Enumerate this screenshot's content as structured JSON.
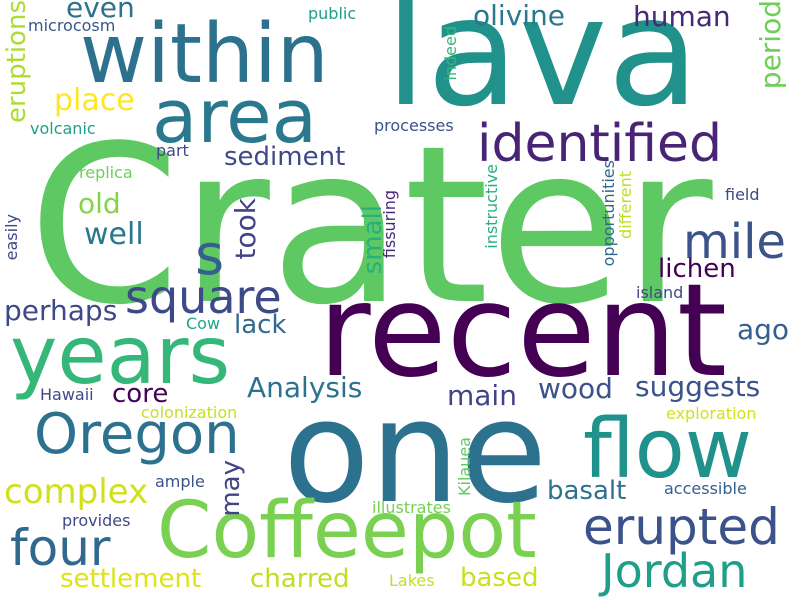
{
  "words": {
    "crater": {
      "text": "Crater",
      "color": "#5ec962"
    },
    "lava": {
      "text": "lava",
      "color": "#21918c"
    },
    "recent": {
      "text": "recent",
      "color": "#440154"
    },
    "one": {
      "text": "one",
      "color": "#2c728e"
    },
    "coffeepot": {
      "text": "Coffeepot",
      "color": "#7ad151"
    },
    "within": {
      "text": "within",
      "color": "#2c728e"
    },
    "years": {
      "text": "years",
      "color": "#35b779"
    },
    "flow": {
      "text": "flow",
      "color": "#21918c"
    },
    "area": {
      "text": "area",
      "color": "#2a788e"
    },
    "oregon": {
      "text": "Oregon",
      "color": "#2c728e"
    },
    "identified": {
      "text": "identified",
      "color": "#482475"
    },
    "erupted": {
      "text": "erupted",
      "color": "#3b528b"
    },
    "jordan": {
      "text": "Jordan",
      "color": "#1f9e89"
    },
    "four": {
      "text": "four",
      "color": "#31688e"
    },
    "mile": {
      "text": "mile",
      "color": "#3b528b"
    },
    "square": {
      "text": "square",
      "color": "#3e4989"
    },
    "s": {
      "text": "s",
      "color": "#355f8d"
    },
    "complex": {
      "text": "complex",
      "color": "#d0e11c"
    },
    "settlement": {
      "text": "settlement",
      "color": "#dde318"
    },
    "charred": {
      "text": "charred",
      "color": "#bddf26"
    },
    "based": {
      "text": "based",
      "color": "#c8e020"
    },
    "olivine": {
      "text": "olivine",
      "color": "#2a788e"
    },
    "human": {
      "text": "human",
      "color": "#482878"
    },
    "sediment": {
      "text": "sediment",
      "color": "#3e4989"
    },
    "place": {
      "text": "place",
      "color": "#fde725"
    },
    "even": {
      "text": "even",
      "color": "#2c728e"
    },
    "well": {
      "text": "well",
      "color": "#2a788e"
    },
    "old": {
      "text": "old",
      "color": "#86d549"
    },
    "perhaps": {
      "text": "perhaps",
      "color": "#3e4989"
    },
    "lack": {
      "text": "lack",
      "color": "#31688e"
    },
    "took": {
      "text": "took",
      "color": "#414487"
    },
    "small": {
      "text": "small",
      "color": "#29af7f"
    },
    "lichen": {
      "text": "lichen",
      "color": "#440154"
    },
    "ago": {
      "text": "ago",
      "color": "#355f8d"
    },
    "analysis": {
      "text": "Analysis",
      "color": "#2c728e"
    },
    "core": {
      "text": "core",
      "color": "#440154"
    },
    "main": {
      "text": "main",
      "color": "#414487"
    },
    "wood": {
      "text": "wood",
      "color": "#3b528b"
    },
    "suggests": {
      "text": "suggests",
      "color": "#3b528b"
    },
    "may": {
      "text": "may",
      "color": "#414487"
    },
    "basalt": {
      "text": "basalt",
      "color": "#2c728e"
    },
    "period": {
      "text": "period",
      "color": "#6ece58"
    },
    "eruptions": {
      "text": "eruptions",
      "color": "#addc30"
    },
    "microcosm": {
      "text": "microcosm",
      "color": "#39568c"
    },
    "public": {
      "text": "public",
      "color": "#1f9e89"
    },
    "indeed": {
      "text": "indeed",
      "color": "#35b779"
    },
    "volcanic": {
      "text": "volcanic",
      "color": "#1f9e89"
    },
    "processes": {
      "text": "processes",
      "color": "#3b528b"
    },
    "part": {
      "text": "part",
      "color": "#3e4989"
    },
    "replica": {
      "text": "replica",
      "color": "#6ece58"
    },
    "easily": {
      "text": "easily",
      "color": "#3e4989"
    },
    "instructive": {
      "text": "instructive",
      "color": "#29af7f"
    },
    "fissuring": {
      "text": "fissuring",
      "color": "#482878"
    },
    "opportunities": {
      "text": "opportunities",
      "color": "#31688e"
    },
    "different": {
      "text": "different",
      "color": "#bddf26"
    },
    "field": {
      "text": "field",
      "color": "#3e4989"
    },
    "island": {
      "text": "island",
      "color": "#3e4989"
    },
    "cow": {
      "text": "Cow",
      "color": "#20a486"
    },
    "hawaii": {
      "text": "Hawaii",
      "color": "#3e4989"
    },
    "colonization": {
      "text": "colonization",
      "color": "#c8e020"
    },
    "exploration": {
      "text": "exploration",
      "color": "#d0e11c"
    },
    "ample": {
      "text": "ample",
      "color": "#3b528b"
    },
    "kilauea": {
      "text": "Kilauea",
      "color": "#5ec962"
    },
    "accessible": {
      "text": "accessible",
      "color": "#355f8d"
    },
    "provides": {
      "text": "provides",
      "color": "#3e4989"
    },
    "illustrates": {
      "text": "illustrates",
      "color": "#75d054"
    },
    "lakes": {
      "text": "Lakes",
      "color": "#c2df23"
    }
  }
}
